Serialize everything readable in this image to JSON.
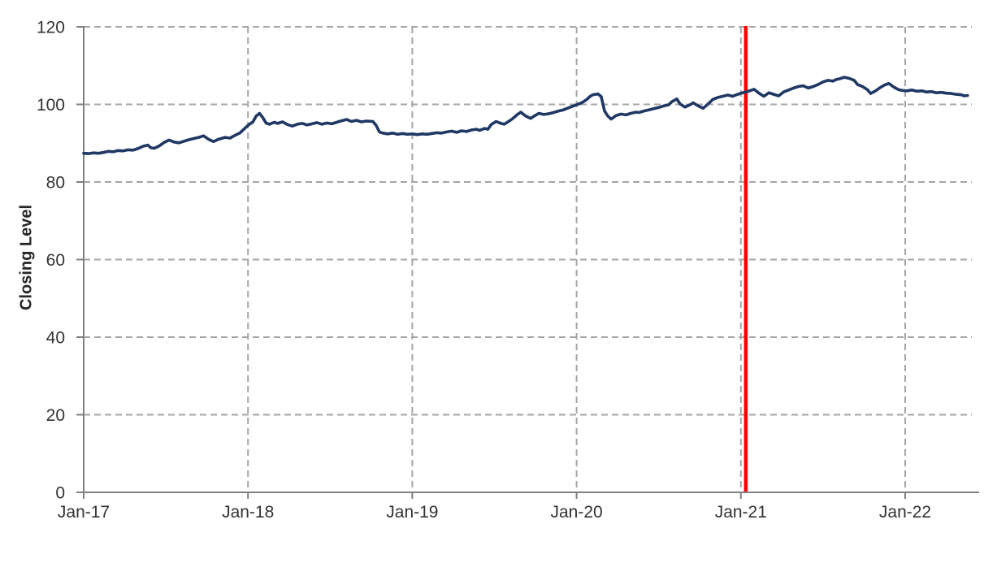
{
  "chart_data": {
    "type": "line",
    "title": "",
    "xlabel": "",
    "ylabel": "Closing Level",
    "ylim": [
      0,
      120
    ],
    "y_ticks": [
      0,
      20,
      40,
      60,
      80,
      100,
      120
    ],
    "x_ticks": [
      {
        "t": 2017,
        "label": "Jan-17"
      },
      {
        "t": 2018,
        "label": "Jan-18"
      },
      {
        "t": 2019,
        "label": "Jan-19"
      },
      {
        "t": 2020,
        "label": "Jan-20"
      },
      {
        "t": 2021,
        "label": "Jan-21"
      },
      {
        "t": 2022,
        "label": "Jan-22"
      }
    ],
    "xlim": [
      2017,
      2022.45
    ],
    "grid": {
      "horizontal": true,
      "vertical": true,
      "style": "dashed",
      "color": "#A6A6A6"
    },
    "legend": "none",
    "axis_color": "#808080",
    "tick_text_color": "#333333",
    "vline": {
      "t": 2021.03,
      "color": "#FF0000"
    },
    "series": [
      {
        "name": "Closing Level",
        "color": "#1F3864",
        "points": [
          [
            2017.0,
            87.4
          ],
          [
            2017.03,
            87.3
          ],
          [
            2017.06,
            87.5
          ],
          [
            2017.09,
            87.4
          ],
          [
            2017.12,
            87.6
          ],
          [
            2017.15,
            87.9
          ],
          [
            2017.18,
            87.8
          ],
          [
            2017.21,
            88.1
          ],
          [
            2017.24,
            88.0
          ],
          [
            2017.27,
            88.3
          ],
          [
            2017.3,
            88.2
          ],
          [
            2017.33,
            88.6
          ],
          [
            2017.36,
            89.2
          ],
          [
            2017.39,
            89.5
          ],
          [
            2017.41,
            88.8
          ],
          [
            2017.43,
            88.7
          ],
          [
            2017.46,
            89.3
          ],
          [
            2017.49,
            90.2
          ],
          [
            2017.52,
            90.8
          ],
          [
            2017.55,
            90.3
          ],
          [
            2017.58,
            90.1
          ],
          [
            2017.61,
            90.5
          ],
          [
            2017.64,
            90.9
          ],
          [
            2017.67,
            91.2
          ],
          [
            2017.7,
            91.5
          ],
          [
            2017.73,
            91.9
          ],
          [
            2017.76,
            91.0
          ],
          [
            2017.79,
            90.4
          ],
          [
            2017.82,
            91.0
          ],
          [
            2017.86,
            91.5
          ],
          [
            2017.89,
            91.3
          ],
          [
            2017.92,
            92.0
          ],
          [
            2017.95,
            92.6
          ],
          [
            2017.98,
            93.8
          ],
          [
            2018.0,
            94.6
          ],
          [
            2018.03,
            95.5
          ],
          [
            2018.05,
            97.0
          ],
          [
            2018.07,
            97.7
          ],
          [
            2018.09,
            96.6
          ],
          [
            2018.11,
            95.2
          ],
          [
            2018.13,
            94.9
          ],
          [
            2018.16,
            95.4
          ],
          [
            2018.18,
            95.1
          ],
          [
            2018.21,
            95.5
          ],
          [
            2018.24,
            94.8
          ],
          [
            2018.27,
            94.4
          ],
          [
            2018.3,
            94.9
          ],
          [
            2018.33,
            95.1
          ],
          [
            2018.36,
            94.7
          ],
          [
            2018.39,
            95.0
          ],
          [
            2018.42,
            95.3
          ],
          [
            2018.45,
            94.9
          ],
          [
            2018.48,
            95.2
          ],
          [
            2018.51,
            95.0
          ],
          [
            2018.54,
            95.4
          ],
          [
            2018.57,
            95.8
          ],
          [
            2018.6,
            96.1
          ],
          [
            2018.63,
            95.6
          ],
          [
            2018.66,
            95.9
          ],
          [
            2018.69,
            95.5
          ],
          [
            2018.72,
            95.7
          ],
          [
            2018.76,
            95.6
          ],
          [
            2018.78,
            94.6
          ],
          [
            2018.8,
            92.9
          ],
          [
            2018.82,
            92.6
          ],
          [
            2018.85,
            92.4
          ],
          [
            2018.88,
            92.6
          ],
          [
            2018.91,
            92.3
          ],
          [
            2018.94,
            92.5
          ],
          [
            2018.97,
            92.3
          ],
          [
            2019.0,
            92.4
          ],
          [
            2019.03,
            92.2
          ],
          [
            2019.06,
            92.4
          ],
          [
            2019.09,
            92.3
          ],
          [
            2019.12,
            92.5
          ],
          [
            2019.15,
            92.7
          ],
          [
            2019.18,
            92.6
          ],
          [
            2019.21,
            92.9
          ],
          [
            2019.24,
            93.1
          ],
          [
            2019.27,
            92.8
          ],
          [
            2019.3,
            93.2
          ],
          [
            2019.33,
            93.0
          ],
          [
            2019.36,
            93.4
          ],
          [
            2019.39,
            93.6
          ],
          [
            2019.41,
            93.3
          ],
          [
            2019.44,
            93.8
          ],
          [
            2019.46,
            93.6
          ],
          [
            2019.48,
            94.8
          ],
          [
            2019.51,
            95.6
          ],
          [
            2019.54,
            95.1
          ],
          [
            2019.56,
            94.9
          ],
          [
            2019.59,
            95.7
          ],
          [
            2019.61,
            96.3
          ],
          [
            2019.64,
            97.4
          ],
          [
            2019.66,
            98.0
          ],
          [
            2019.69,
            97.0
          ],
          [
            2019.72,
            96.4
          ],
          [
            2019.75,
            97.2
          ],
          [
            2019.77,
            97.7
          ],
          [
            2019.8,
            97.4
          ],
          [
            2019.83,
            97.6
          ],
          [
            2019.86,
            97.9
          ],
          [
            2019.89,
            98.3
          ],
          [
            2019.92,
            98.6
          ],
          [
            2019.95,
            99.1
          ],
          [
            2019.98,
            99.6
          ],
          [
            2020.0,
            99.9
          ],
          [
            2020.03,
            100.4
          ],
          [
            2020.06,
            101.2
          ],
          [
            2020.08,
            102.0
          ],
          [
            2020.1,
            102.5
          ],
          [
            2020.13,
            102.7
          ],
          [
            2020.15,
            102.0
          ],
          [
            2020.17,
            98.3
          ],
          [
            2020.19,
            97.0
          ],
          [
            2020.21,
            96.2
          ],
          [
            2020.24,
            97.1
          ],
          [
            2020.27,
            97.5
          ],
          [
            2020.3,
            97.3
          ],
          [
            2020.33,
            97.7
          ],
          [
            2020.36,
            98.0
          ],
          [
            2020.38,
            97.9
          ],
          [
            2020.41,
            98.3
          ],
          [
            2020.44,
            98.6
          ],
          [
            2020.47,
            98.9
          ],
          [
            2020.5,
            99.2
          ],
          [
            2020.53,
            99.6
          ],
          [
            2020.56,
            99.9
          ],
          [
            2020.58,
            100.7
          ],
          [
            2020.61,
            101.4
          ],
          [
            2020.63,
            100.1
          ],
          [
            2020.66,
            99.3
          ],
          [
            2020.69,
            99.9
          ],
          [
            2020.71,
            100.4
          ],
          [
            2020.74,
            99.6
          ],
          [
            2020.77,
            99.0
          ],
          [
            2020.8,
            100.1
          ],
          [
            2020.83,
            101.3
          ],
          [
            2020.86,
            101.8
          ],
          [
            2020.89,
            102.1
          ],
          [
            2020.92,
            102.4
          ],
          [
            2020.95,
            102.1
          ],
          [
            2020.98,
            102.6
          ],
          [
            2021.01,
            103.0
          ],
          [
            2021.04,
            103.3
          ],
          [
            2021.06,
            103.6
          ],
          [
            2021.08,
            103.9
          ],
          [
            2021.11,
            102.9
          ],
          [
            2021.14,
            102.1
          ],
          [
            2021.17,
            103.0
          ],
          [
            2021.2,
            102.6
          ],
          [
            2021.23,
            102.2
          ],
          [
            2021.26,
            103.2
          ],
          [
            2021.29,
            103.7
          ],
          [
            2021.32,
            104.2
          ],
          [
            2021.35,
            104.6
          ],
          [
            2021.38,
            104.8
          ],
          [
            2021.41,
            104.2
          ],
          [
            2021.44,
            104.6
          ],
          [
            2021.47,
            105.1
          ],
          [
            2021.5,
            105.8
          ],
          [
            2021.53,
            106.2
          ],
          [
            2021.56,
            106.0
          ],
          [
            2021.58,
            106.4
          ],
          [
            2021.6,
            106.6
          ],
          [
            2021.63,
            107.0
          ],
          [
            2021.66,
            106.7
          ],
          [
            2021.69,
            106.2
          ],
          [
            2021.71,
            105.1
          ],
          [
            2021.74,
            104.6
          ],
          [
            2021.77,
            103.8
          ],
          [
            2021.79,
            102.8
          ],
          [
            2021.82,
            103.5
          ],
          [
            2021.84,
            104.1
          ],
          [
            2021.87,
            104.9
          ],
          [
            2021.9,
            105.4
          ],
          [
            2021.93,
            104.5
          ],
          [
            2021.96,
            103.8
          ],
          [
            2021.98,
            103.6
          ],
          [
            2022.01,
            103.5
          ],
          [
            2022.04,
            103.7
          ],
          [
            2022.07,
            103.4
          ],
          [
            2022.1,
            103.5
          ],
          [
            2022.13,
            103.2
          ],
          [
            2022.16,
            103.3
          ],
          [
            2022.19,
            103.0
          ],
          [
            2022.22,
            103.1
          ],
          [
            2022.25,
            102.9
          ],
          [
            2022.28,
            102.8
          ],
          [
            2022.31,
            102.6
          ],
          [
            2022.34,
            102.5
          ],
          [
            2022.36,
            102.2
          ],
          [
            2022.38,
            102.3
          ]
        ]
      }
    ]
  }
}
